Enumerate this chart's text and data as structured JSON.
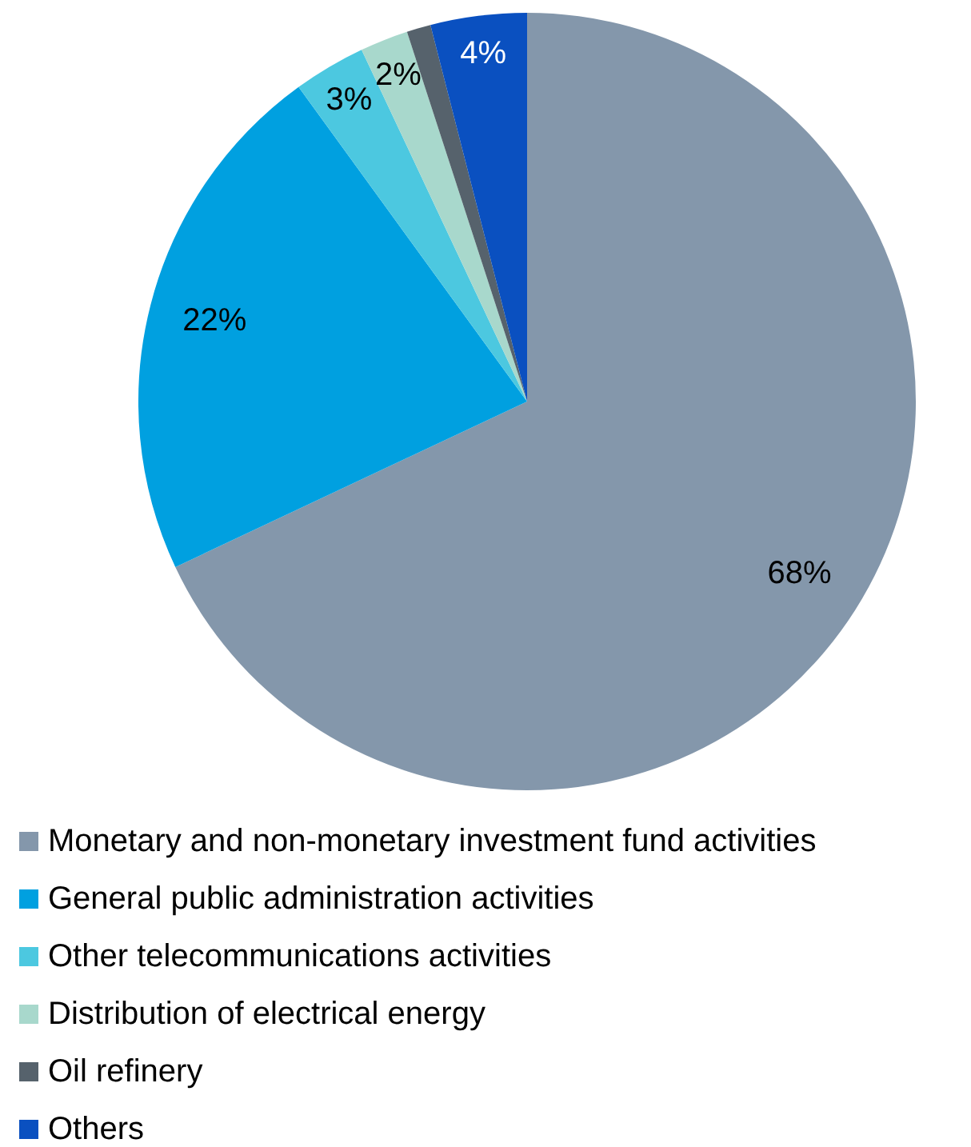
{
  "chart_data": {
    "type": "pie",
    "categories": [
      "Monetary and non-monetary investment fund activities",
      "General public administration activities",
      "Other telecommunications activities",
      "Distribution of electrical energy",
      "Oil refinery",
      "Others"
    ],
    "values": [
      68,
      22,
      3,
      2,
      1,
      4
    ],
    "colors": [
      "#8497ab",
      "#00a0e0",
      "#4cc8e0",
      "#a8d8cc",
      "#56626c",
      "#0a50c0"
    ],
    "value_labels": [
      "68%",
      "22%",
      "3%",
      "2%",
      null,
      "4%"
    ],
    "legend": "bottom"
  }
}
